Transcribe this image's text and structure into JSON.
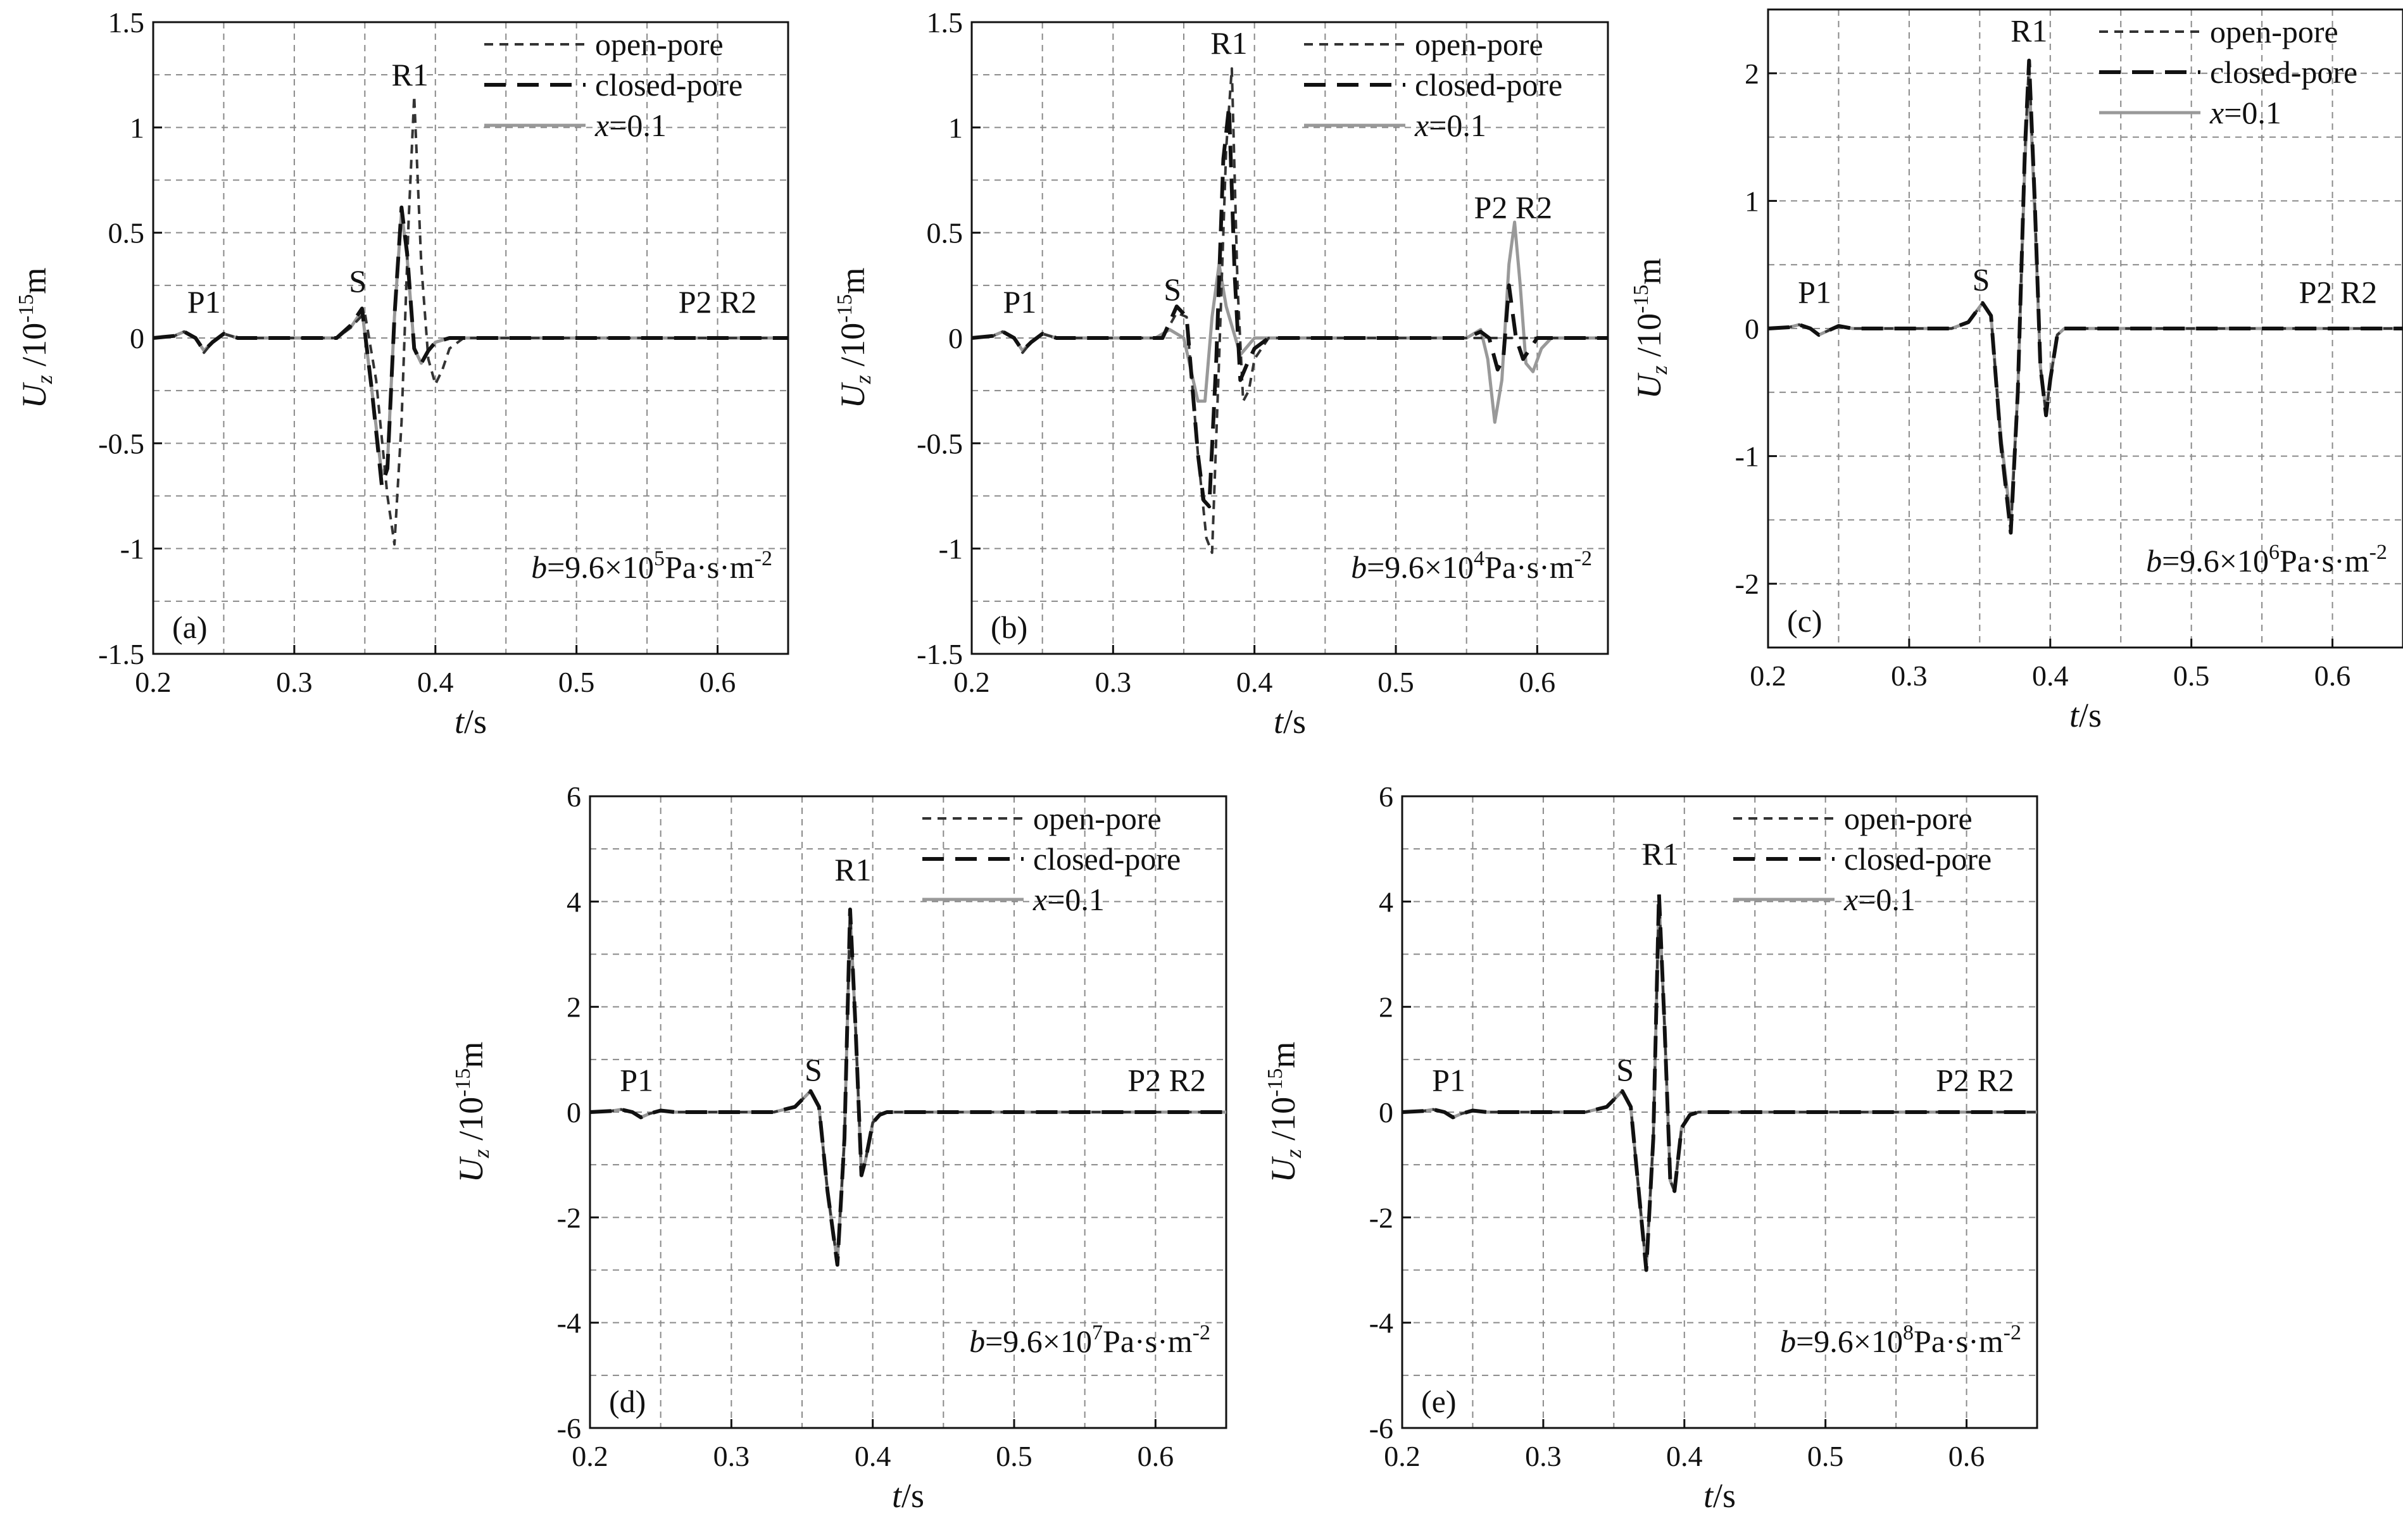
{
  "legend": [
    {
      "key": "open",
      "label": "open-pore",
      "color": "#333333"
    },
    {
      "key": "closed",
      "label": "closed-pore",
      "color": "#111111"
    },
    {
      "key": "x01",
      "label_italic": "x",
      "label_rest": "=0.1",
      "color": "#999999"
    }
  ],
  "chart_data": [
    {
      "type": "line",
      "panel_label": "(a)",
      "param": {
        "b": "b",
        "mid": "=9.6×10",
        "exp": "5",
        "unit": "Pa·s·m",
        "unit_exp": "-2"
      },
      "xlabel": "t/s",
      "ylabel": "Uz /10-15m",
      "xlim": [
        0.2,
        0.65
      ],
      "ylim": [
        -1.5,
        1.5
      ],
      "xticks": [
        0.2,
        0.3,
        0.4,
        0.5,
        0.6
      ],
      "yticks": [
        -1.5,
        -1,
        -0.5,
        0,
        0.5,
        1,
        1.5
      ],
      "annotations": [
        {
          "text": "P1",
          "x": 0.236,
          "y": 0.12
        },
        {
          "text": "S",
          "x": 0.345,
          "y": 0.22
        },
        {
          "text": "R1",
          "x": 0.382,
          "y": 1.2
        },
        {
          "text": "P2 R2",
          "x": 0.6,
          "y": 0.12
        }
      ],
      "series": [
        {
          "key": "open",
          "x": [
            0.2,
            0.215,
            0.222,
            0.23,
            0.236,
            0.242,
            0.25,
            0.26,
            0.33,
            0.34,
            0.35,
            0.358,
            0.366,
            0.371,
            0.376,
            0.381,
            0.385,
            0.39,
            0.395,
            0.4,
            0.405,
            0.41,
            0.42,
            0.65
          ],
          "y": [
            0,
            0.01,
            0.03,
            0,
            -0.07,
            -0.02,
            0.02,
            0,
            0,
            0.05,
            0.12,
            -0.2,
            -0.75,
            -0.98,
            -0.4,
            0.55,
            1.15,
            0.35,
            -0.1,
            -0.22,
            -0.15,
            -0.05,
            0,
            0
          ]
        },
        {
          "key": "closed",
          "x": [
            0.2,
            0.215,
            0.222,
            0.23,
            0.236,
            0.242,
            0.25,
            0.26,
            0.33,
            0.34,
            0.348,
            0.355,
            0.362,
            0.366,
            0.371,
            0.376,
            0.38,
            0.385,
            0.39,
            0.395,
            0.4,
            0.41,
            0.65
          ],
          "y": [
            0,
            0.01,
            0.03,
            0,
            -0.06,
            -0.02,
            0.02,
            0,
            0,
            0.06,
            0.14,
            -0.25,
            -0.7,
            -0.62,
            0.1,
            0.62,
            0.4,
            -0.05,
            -0.12,
            -0.06,
            -0.02,
            0,
            0
          ]
        },
        {
          "key": "x01",
          "x": [
            0.2,
            0.215,
            0.222,
            0.23,
            0.236,
            0.242,
            0.25,
            0.26,
            0.33,
            0.34,
            0.348,
            0.355,
            0.362,
            0.366,
            0.371,
            0.376,
            0.38,
            0.385,
            0.39,
            0.395,
            0.4,
            0.41,
            0.65
          ],
          "y": [
            0,
            0.01,
            0.03,
            0,
            -0.06,
            -0.02,
            0.02,
            0,
            0,
            0.05,
            0.13,
            -0.25,
            -0.65,
            -0.6,
            0.1,
            0.6,
            0.38,
            -0.05,
            -0.12,
            -0.06,
            -0.02,
            0,
            0
          ]
        }
      ]
    },
    {
      "type": "line",
      "panel_label": "(b)",
      "param": {
        "b": "b",
        "mid": "=9.6×10",
        "exp": "4",
        "unit": "Pa·s·m",
        "unit_exp": "-2"
      },
      "xlabel": "t/s",
      "ylabel": "Uz /10-15m",
      "xlim": [
        0.2,
        0.65
      ],
      "ylim": [
        -1.5,
        1.5
      ],
      "xticks": [
        0.2,
        0.3,
        0.4,
        0.5,
        0.6
      ],
      "yticks": [
        -1.5,
        -1,
        -0.5,
        0,
        0.5,
        1,
        1.5
      ],
      "annotations": [
        {
          "text": "P1",
          "x": 0.234,
          "y": 0.12
        },
        {
          "text": "S",
          "x": 0.342,
          "y": 0.18
        },
        {
          "text": "R1",
          "x": 0.382,
          "y": 1.35
        },
        {
          "text": "P2 R2",
          "x": 0.583,
          "y": 0.57
        }
      ],
      "series": [
        {
          "key": "open",
          "x": [
            0.2,
            0.215,
            0.222,
            0.23,
            0.236,
            0.242,
            0.25,
            0.26,
            0.335,
            0.345,
            0.352,
            0.36,
            0.366,
            0.37,
            0.375,
            0.38,
            0.384,
            0.388,
            0.392,
            0.396,
            0.4,
            0.41,
            0.65
          ],
          "y": [
            0,
            0.01,
            0.03,
            0,
            -0.07,
            -0.02,
            0.02,
            0,
            0,
            0.12,
            0.1,
            -0.55,
            -0.95,
            -1.02,
            -0.1,
            0.9,
            1.28,
            0.25,
            -0.3,
            -0.25,
            -0.1,
            0,
            0
          ]
        },
        {
          "key": "closed",
          "x": [
            0.2,
            0.215,
            0.222,
            0.23,
            0.236,
            0.242,
            0.25,
            0.26,
            0.335,
            0.345,
            0.352,
            0.36,
            0.364,
            0.368,
            0.373,
            0.378,
            0.382,
            0.386,
            0.39,
            0.395,
            0.4,
            0.41,
            0.55,
            0.56,
            0.566,
            0.572,
            0.576,
            0.58,
            0.585,
            0.59,
            0.595,
            0.6,
            0.65
          ],
          "y": [
            0,
            0.01,
            0.03,
            0,
            -0.06,
            -0.02,
            0.02,
            0,
            0,
            0.15,
            0.1,
            -0.55,
            -0.77,
            -0.8,
            -0.1,
            0.85,
            1.1,
            0.3,
            -0.2,
            -0.12,
            -0.05,
            0,
            0,
            0.03,
            0,
            -0.15,
            -0.1,
            0.25,
            0,
            -0.1,
            -0.05,
            0,
            0
          ]
        },
        {
          "key": "x01",
          "x": [
            0.2,
            0.215,
            0.222,
            0.23,
            0.236,
            0.242,
            0.25,
            0.26,
            0.33,
            0.34,
            0.35,
            0.36,
            0.365,
            0.37,
            0.375,
            0.38,
            0.39,
            0.4,
            0.55,
            0.56,
            0.565,
            0.57,
            0.575,
            0.58,
            0.584,
            0.588,
            0.592,
            0.597,
            0.603,
            0.61,
            0.65
          ],
          "y": [
            0,
            0.01,
            0.03,
            0,
            -0.06,
            -0.02,
            0.02,
            0,
            0,
            0.04,
            0.0,
            -0.3,
            -0.3,
            0.1,
            0.35,
            0.15,
            -0.08,
            0,
            0,
            0.04,
            -0.1,
            -0.4,
            -0.2,
            0.35,
            0.55,
            0.25,
            -0.12,
            -0.16,
            -0.05,
            0,
            0
          ]
        }
      ]
    },
    {
      "type": "line",
      "panel_label": "(c)",
      "param": {
        "b": "b",
        "mid": "=9.6×10",
        "exp": "6",
        "unit": "Pa·s·m",
        "unit_exp": "-2"
      },
      "xlabel": "t/s",
      "ylabel": "Uz /10-15m",
      "xlim": [
        0.2,
        0.65
      ],
      "ylim": [
        -2.5,
        2.5
      ],
      "xticks": [
        0.2,
        0.3,
        0.4,
        0.5,
        0.6
      ],
      "yticks": [
        -2,
        -1,
        0,
        1,
        2
      ],
      "annotations": [
        {
          "text": "P1",
          "x": 0.233,
          "y": 0.2
        },
        {
          "text": "S",
          "x": 0.351,
          "y": 0.3
        },
        {
          "text": "R1",
          "x": 0.385,
          "y": 2.25
        },
        {
          "text": "P2 R2",
          "x": 0.604,
          "y": 0.2
        }
      ],
      "series": [
        {
          "key": "open",
          "x": [
            0.2,
            0.215,
            0.222,
            0.23,
            0.236,
            0.242,
            0.25,
            0.26,
            0.33,
            0.342,
            0.352,
            0.358,
            0.365,
            0.372,
            0.377,
            0.382,
            0.385,
            0.389,
            0.393,
            0.397,
            0.4,
            0.405,
            0.41,
            0.65
          ],
          "y": [
            0,
            0.01,
            0.03,
            0,
            -0.05,
            -0.02,
            0.02,
            0,
            0,
            0.05,
            0.2,
            0.1,
            -0.9,
            -1.6,
            -0.5,
            1.4,
            2.1,
            1.0,
            -0.3,
            -0.68,
            -0.4,
            -0.05,
            0,
            0
          ]
        },
        {
          "key": "closed",
          "x": [
            0.2,
            0.215,
            0.222,
            0.23,
            0.236,
            0.242,
            0.25,
            0.26,
            0.33,
            0.342,
            0.352,
            0.358,
            0.365,
            0.372,
            0.377,
            0.382,
            0.385,
            0.389,
            0.393,
            0.397,
            0.4,
            0.405,
            0.41,
            0.65
          ],
          "y": [
            0,
            0.01,
            0.03,
            0,
            -0.05,
            -0.02,
            0.02,
            0,
            0,
            0.05,
            0.2,
            0.1,
            -0.9,
            -1.6,
            -0.5,
            1.4,
            2.1,
            1.0,
            -0.3,
            -0.68,
            -0.4,
            -0.05,
            0,
            0
          ]
        },
        {
          "key": "x01",
          "x": [
            0.2,
            0.215,
            0.222,
            0.23,
            0.236,
            0.242,
            0.25,
            0.26,
            0.33,
            0.342,
            0.352,
            0.358,
            0.365,
            0.372,
            0.377,
            0.382,
            0.385,
            0.389,
            0.393,
            0.397,
            0.4,
            0.405,
            0.41,
            0.65
          ],
          "y": [
            0,
            0.01,
            0.03,
            0,
            -0.05,
            -0.02,
            0.02,
            0,
            0,
            0.05,
            0.2,
            0.1,
            -0.85,
            -1.5,
            -0.5,
            1.3,
            2.0,
            0.9,
            -0.3,
            -0.65,
            -0.4,
            -0.05,
            0,
            0
          ]
        }
      ]
    },
    {
      "type": "line",
      "panel_label": "(d)",
      "param": {
        "b": "b",
        "mid": "=9.6×10",
        "exp": "7",
        "unit": "Pa·s·m",
        "unit_exp": "-2"
      },
      "xlabel": "t/s",
      "ylabel": "Uz /10-15m",
      "xlim": [
        0.2,
        0.65
      ],
      "ylim": [
        -6,
        6
      ],
      "xticks": [
        0.2,
        0.3,
        0.4,
        0.5,
        0.6
      ],
      "yticks": [
        -6,
        -4,
        -2,
        0,
        2,
        4,
        6
      ],
      "annotations": [
        {
          "text": "P1",
          "x": 0.233,
          "y": 0.4
        },
        {
          "text": "S",
          "x": 0.358,
          "y": 0.6
        },
        {
          "text": "R1",
          "x": 0.386,
          "y": 4.4
        },
        {
          "text": "P2 R2",
          "x": 0.608,
          "y": 0.4
        }
      ],
      "series": [
        {
          "key": "open",
          "x": [
            0.2,
            0.215,
            0.222,
            0.23,
            0.236,
            0.242,
            0.25,
            0.26,
            0.33,
            0.345,
            0.356,
            0.362,
            0.368,
            0.375,
            0.38,
            0.384,
            0.388,
            0.392,
            0.395,
            0.4,
            0.405,
            0.41,
            0.65
          ],
          "y": [
            0,
            0.02,
            0.05,
            0,
            -0.1,
            -0.03,
            0.03,
            0,
            0,
            0.1,
            0.4,
            0.1,
            -1.5,
            -2.9,
            -0.5,
            3.85,
            1.5,
            -1.2,
            -0.9,
            -0.2,
            -0.05,
            0,
            0
          ]
        },
        {
          "key": "closed",
          "x": [
            0.2,
            0.215,
            0.222,
            0.23,
            0.236,
            0.242,
            0.25,
            0.26,
            0.33,
            0.345,
            0.356,
            0.362,
            0.368,
            0.375,
            0.38,
            0.384,
            0.388,
            0.392,
            0.395,
            0.4,
            0.405,
            0.41,
            0.65
          ],
          "y": [
            0,
            0.02,
            0.05,
            0,
            -0.1,
            -0.03,
            0.03,
            0,
            0,
            0.1,
            0.4,
            0.1,
            -1.5,
            -2.9,
            -0.5,
            3.85,
            1.5,
            -1.2,
            -0.9,
            -0.2,
            -0.05,
            0,
            0
          ]
        },
        {
          "key": "x01",
          "x": [
            0.2,
            0.215,
            0.222,
            0.23,
            0.236,
            0.242,
            0.25,
            0.26,
            0.33,
            0.345,
            0.356,
            0.362,
            0.368,
            0.375,
            0.38,
            0.384,
            0.388,
            0.392,
            0.395,
            0.4,
            0.405,
            0.41,
            0.65
          ],
          "y": [
            0,
            0.02,
            0.05,
            0,
            -0.1,
            -0.03,
            0.03,
            0,
            0,
            0.1,
            0.4,
            0.1,
            -1.5,
            -2.85,
            -0.5,
            3.8,
            1.5,
            -1.2,
            -0.9,
            -0.2,
            -0.05,
            0,
            0
          ]
        }
      ]
    },
    {
      "type": "line",
      "panel_label": "(e)",
      "param": {
        "b": "b",
        "mid": "=9.6×10",
        "exp": "8",
        "unit": "Pa·s·m",
        "unit_exp": "-2"
      },
      "xlabel": "t/s",
      "ylabel": "Uz /10-15m",
      "xlim": [
        0.2,
        0.65
      ],
      "ylim": [
        -6,
        6
      ],
      "xticks": [
        0.2,
        0.3,
        0.4,
        0.5,
        0.6
      ],
      "yticks": [
        -6,
        -4,
        -2,
        0,
        2,
        4,
        6
      ],
      "annotations": [
        {
          "text": "P1",
          "x": 0.233,
          "y": 0.4
        },
        {
          "text": "S",
          "x": 0.358,
          "y": 0.6
        },
        {
          "text": "R1",
          "x": 0.383,
          "y": 4.7
        },
        {
          "text": "P2 R2",
          "x": 0.606,
          "y": 0.4
        }
      ],
      "series": [
        {
          "key": "open",
          "x": [
            0.2,
            0.215,
            0.222,
            0.23,
            0.236,
            0.242,
            0.25,
            0.26,
            0.33,
            0.345,
            0.356,
            0.362,
            0.368,
            0.373,
            0.378,
            0.382,
            0.386,
            0.39,
            0.393,
            0.398,
            0.404,
            0.41,
            0.65
          ],
          "y": [
            0,
            0.02,
            0.05,
            0,
            -0.1,
            -0.03,
            0.03,
            0,
            0,
            0.1,
            0.4,
            0.1,
            -1.6,
            -3.0,
            -0.5,
            4.15,
            1.6,
            -1.3,
            -1.5,
            -0.3,
            -0.05,
            0,
            0
          ]
        },
        {
          "key": "closed",
          "x": [
            0.2,
            0.215,
            0.222,
            0.23,
            0.236,
            0.242,
            0.25,
            0.26,
            0.33,
            0.345,
            0.356,
            0.362,
            0.368,
            0.373,
            0.378,
            0.382,
            0.386,
            0.39,
            0.393,
            0.398,
            0.404,
            0.41,
            0.65
          ],
          "y": [
            0,
            0.02,
            0.05,
            0,
            -0.1,
            -0.03,
            0.03,
            0,
            0,
            0.1,
            0.4,
            0.1,
            -1.6,
            -3.0,
            -0.5,
            4.15,
            1.6,
            -1.3,
            -1.5,
            -0.3,
            -0.05,
            0,
            0
          ]
        },
        {
          "key": "x01",
          "x": [
            0.2,
            0.215,
            0.222,
            0.23,
            0.236,
            0.242,
            0.25,
            0.26,
            0.33,
            0.345,
            0.356,
            0.362,
            0.368,
            0.373,
            0.378,
            0.382,
            0.386,
            0.39,
            0.393,
            0.398,
            0.404,
            0.41,
            0.65
          ],
          "y": [
            0,
            0.02,
            0.05,
            0,
            -0.1,
            -0.03,
            0.03,
            0,
            0,
            0.1,
            0.4,
            0.1,
            -1.6,
            -2.95,
            -0.5,
            4.1,
            1.6,
            -1.3,
            -1.5,
            -0.3,
            -0.05,
            0,
            0
          ]
        }
      ]
    }
  ]
}
